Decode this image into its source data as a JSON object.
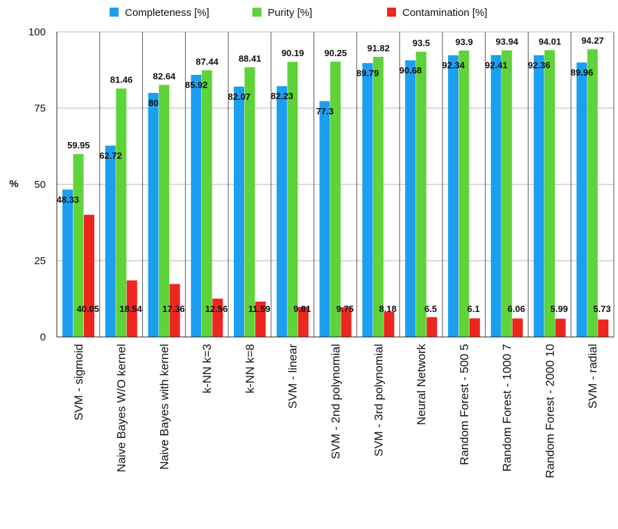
{
  "chart_data": {
    "type": "bar",
    "title": "",
    "xlabel": "",
    "ylabel": "%",
    "ylim": [
      0,
      100
    ],
    "yticks": [
      0,
      25,
      50,
      75,
      100
    ],
    "grid": true,
    "legend_position": "top",
    "categories": [
      "SVM - sigmoid",
      "Naive Bayes W/O kernel",
      "Naive Bayes with kernel",
      "k-NN k=3",
      "k-NN k=8",
      "SVM - linear",
      "SVM - 2nd polynomial",
      "SVM - 3rd polynomial",
      "Neural Network",
      "Random Forest - 500 5",
      "Random Forest - 1000 7",
      "Random Forest - 2000 10",
      "SVM - radial"
    ],
    "series": [
      {
        "name": "Completeness [%]",
        "color": "#1c9ff0",
        "values": [
          48.33,
          62.72,
          80,
          85.92,
          82.07,
          82.23,
          77.3,
          89.79,
          90.68,
          92.34,
          92.41,
          92.36,
          89.96
        ]
      },
      {
        "name": "Purity [%]",
        "color": "#5fd33a",
        "values": [
          59.95,
          81.46,
          82.64,
          87.44,
          88.41,
          90.19,
          90.25,
          91.82,
          93.5,
          93.9,
          93.94,
          94.01,
          94.27
        ]
      },
      {
        "name": "Contamination [%]",
        "color": "#ee2620",
        "values": [
          40.05,
          18.54,
          17.36,
          12.56,
          11.59,
          9.81,
          9.75,
          8.18,
          6.5,
          6.1,
          6.06,
          5.99,
          5.73
        ]
      }
    ]
  }
}
